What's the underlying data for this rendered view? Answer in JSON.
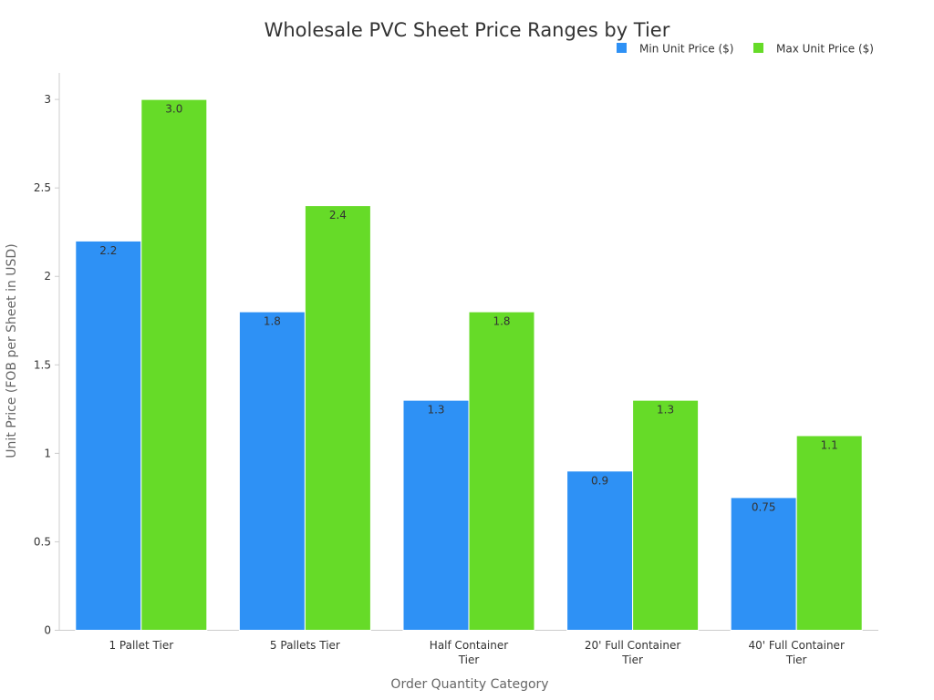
{
  "chart_data": {
    "type": "bar",
    "title": "Wholesale PVC Sheet Price Ranges by Tier",
    "xlabel": "Order Quantity Category",
    "ylabel": "Unit Price (FOB per Sheet in USD)",
    "categories": [
      [
        "1 Pallet Tier"
      ],
      [
        "5 Pallets Tier"
      ],
      [
        "Half Container",
        "Tier"
      ],
      [
        "20' Full Container",
        "Tier"
      ],
      [
        "40' Full Container",
        "Tier"
      ]
    ],
    "series": [
      {
        "name": "Min Unit Price ($)",
        "color": "#2e91f5",
        "values": [
          2.2,
          1.8,
          1.3,
          0.9,
          0.75
        ],
        "labels": [
          "2.2",
          "1.8",
          "1.3",
          "0.9",
          "0.75"
        ]
      },
      {
        "name": "Max Unit Price ($)",
        "color": "#66db28",
        "values": [
          3.0,
          2.4,
          1.8,
          1.3,
          1.1
        ],
        "labels": [
          "3.0",
          "2.4",
          "1.8",
          "1.3",
          "1.1"
        ]
      }
    ],
    "ylim": [
      0,
      3.15
    ],
    "yticks": [
      0,
      0.5,
      1,
      1.5,
      2,
      2.5,
      3
    ],
    "ytick_labels": [
      "0",
      "0.5",
      "1",
      "1.5",
      "2",
      "2.5",
      "3"
    ],
    "grid": false,
    "legend_position": "top-right",
    "axis_color": "#cccccc"
  }
}
